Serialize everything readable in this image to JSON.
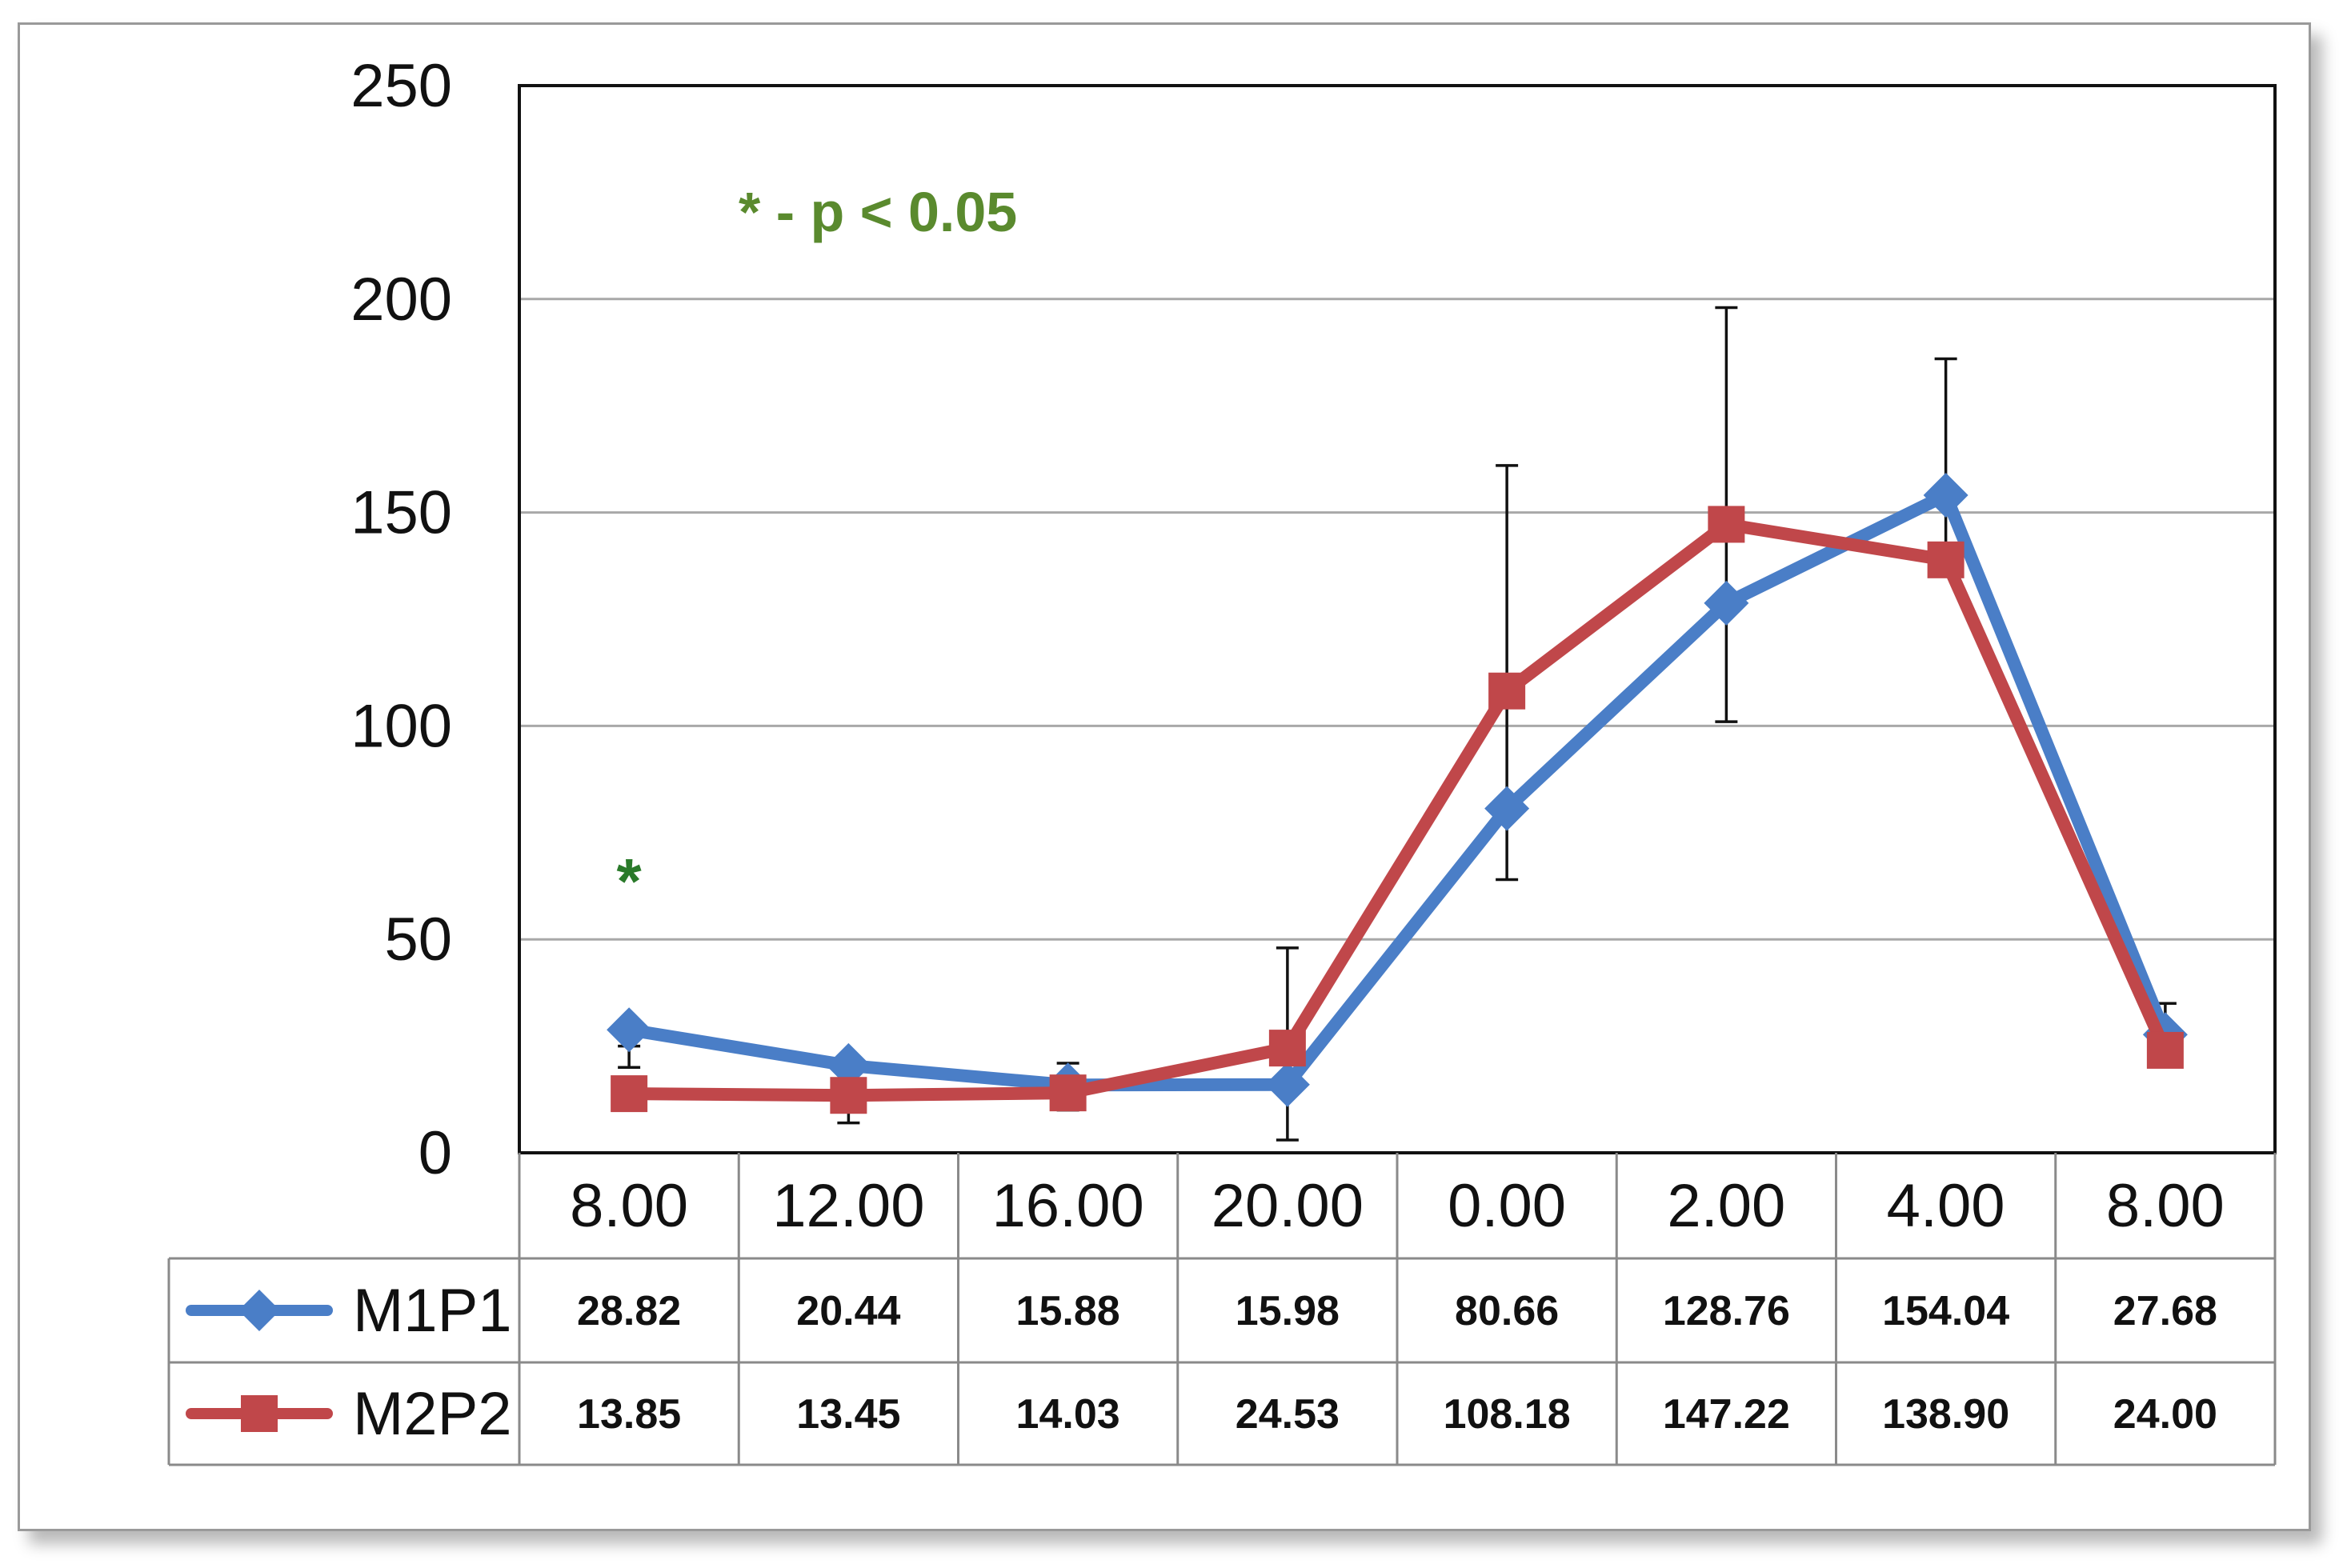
{
  "chart_data": {
    "type": "line",
    "categories": [
      "8.00",
      "12.00",
      "16.00",
      "20.00",
      "0.00",
      "2.00",
      "4.00",
      "8.00"
    ],
    "ylim": [
      0,
      250
    ],
    "yticks": [
      0,
      50,
      100,
      150,
      200,
      250
    ],
    "grid": true,
    "legend": "table-below",
    "series": [
      {
        "name": "M1P1",
        "color": "#4a7ec7",
        "marker": "diamond",
        "values": [
          28.82,
          20.44,
          15.88,
          15.98,
          80.66,
          128.76,
          154.04,
          27.68
        ],
        "value_labels": [
          "28.82",
          "20.44",
          "15.88",
          "15.98",
          "80.66",
          "128.76",
          "154.04",
          "27.68"
        ]
      },
      {
        "name": "M2P2",
        "color": "#c0474a",
        "marker": "square",
        "values": [
          13.85,
          13.45,
          14.03,
          24.53,
          108.18,
          147.22,
          138.9,
          24.0
        ],
        "value_labels": [
          "13.85",
          "13.45",
          "14.03",
          "24.53",
          "108.18",
          "147.22",
          "138.90",
          "24.00"
        ]
      }
    ],
    "error_bars": [
      {
        "index": 0,
        "low": 20,
        "high": 25
      },
      {
        "index": 1,
        "low": 7,
        "high": 20
      },
      {
        "index": 2,
        "low": 10,
        "high": 21
      },
      {
        "index": 3,
        "low": 3,
        "high": 48
      },
      {
        "index": 4,
        "low": 64,
        "high": 161
      },
      {
        "index": 5,
        "low": 101,
        "high": 198
      },
      {
        "index": 6,
        "low": 138,
        "high": 186
      },
      {
        "index": 7,
        "low": 22,
        "high": 35
      }
    ],
    "annotation": "* - p < 0.05",
    "annotation_color": "#5a8a2e",
    "significance_marker": {
      "index": 0,
      "text": "*",
      "y": 66,
      "color": "#2a7a2a"
    }
  }
}
